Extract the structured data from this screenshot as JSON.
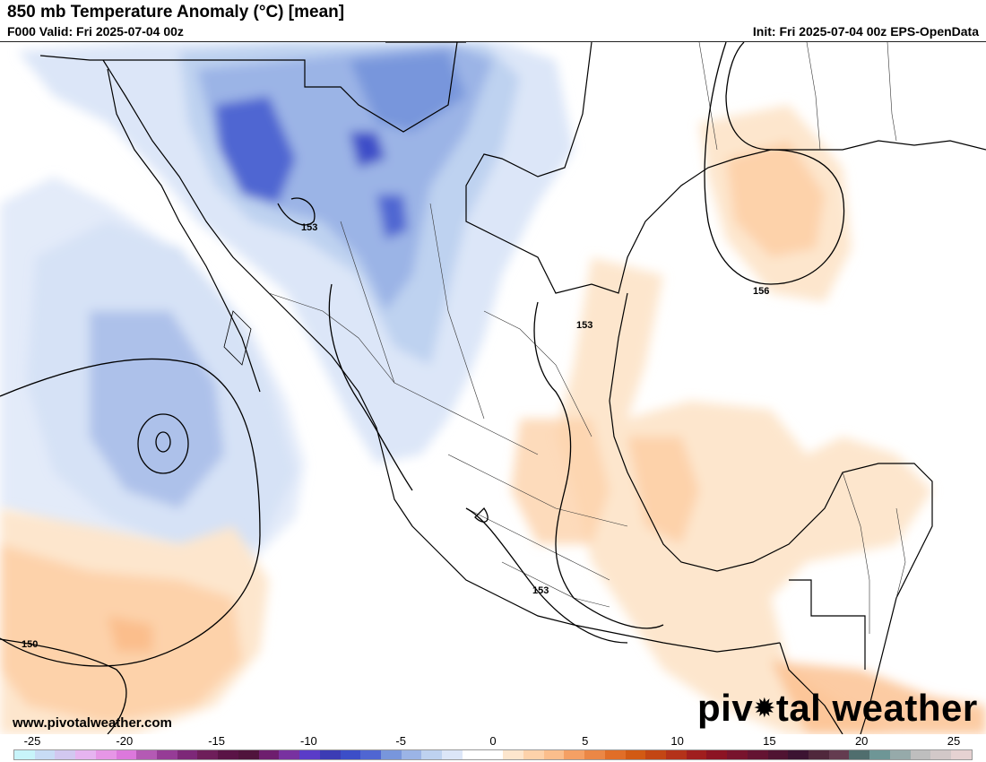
{
  "header": {
    "title": "850 mb Temperature Anomaly (°C) [mean]",
    "valid": "F000 Valid: Fri 2025-07-04 00z",
    "init": "Init: Fri 2025-07-04 00z EPS-OpenData"
  },
  "map": {
    "region": "Mexico, Gulf of Mexico, Central America",
    "contour_labels": [
      "153",
      "153",
      "156",
      "153",
      "150"
    ]
  },
  "footer": {
    "website": "www.pivotalweather.com",
    "logo_left": "piv",
    "logo_right": "tal weather",
    "logo_icon": "gear-icon"
  },
  "colorbar": {
    "tick_labels": [
      "-25",
      "-20",
      "-15",
      "-10",
      "-5",
      "0",
      "5",
      "10",
      "15",
      "20",
      "25"
    ],
    "colors": [
      "#c8f4fa",
      "#c8dcf5",
      "#d2c8f0",
      "#e6b4f0",
      "#e696e6",
      "#dc78dc",
      "#b45ab4",
      "#963c96",
      "#7d2878",
      "#6e1e5a",
      "#5a1446",
      "#50143c",
      "#6e1e6e",
      "#7832a0",
      "#5a3cc8",
      "#3c3cb4",
      "#3c4ec8",
      "#5066d2",
      "#7896dc",
      "#9bb4e6",
      "#bed2f0",
      "#dce6f8",
      "#ffffff",
      "#ffffff",
      "#fde6cd",
      "#fdd2aa",
      "#fbbe8c",
      "#f5a064",
      "#eb8746",
      "#e16e28",
      "#d25a14",
      "#c34614",
      "#b43219",
      "#a01e1e",
      "#8c1423",
      "#78142d",
      "#641432",
      "#501432",
      "#3c1432",
      "#50283c",
      "#643c50",
      "#506e6e",
      "#6e9696",
      "#96aaaa",
      "#bebebe",
      "#d2c8c8",
      "#e6d2d2"
    ]
  }
}
